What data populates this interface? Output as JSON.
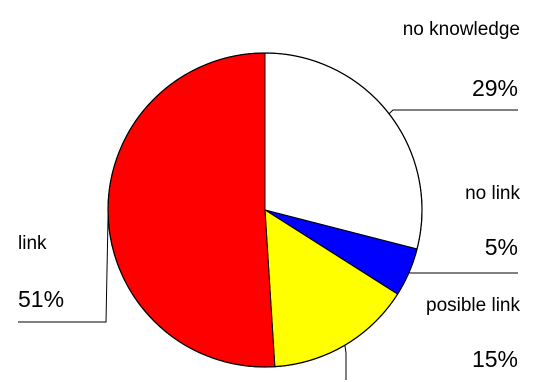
{
  "chart_data": {
    "type": "pie",
    "slices": [
      {
        "label": "no knowledge",
        "value": 29,
        "value_label": "29%",
        "color": "#ffffff"
      },
      {
        "label": "no link",
        "value": 5,
        "value_label": "5%",
        "color": "#0000ff"
      },
      {
        "label": "posible link",
        "value": 15,
        "value_label": "15%",
        "color": "#ffff00"
      },
      {
        "label": "link",
        "value": 51,
        "value_label": "51%",
        "color": "#ff0000"
      }
    ],
    "start": "12 o'clock",
    "direction": "clockwise",
    "legend": "none",
    "labels": "callout lines outside the pie"
  }
}
